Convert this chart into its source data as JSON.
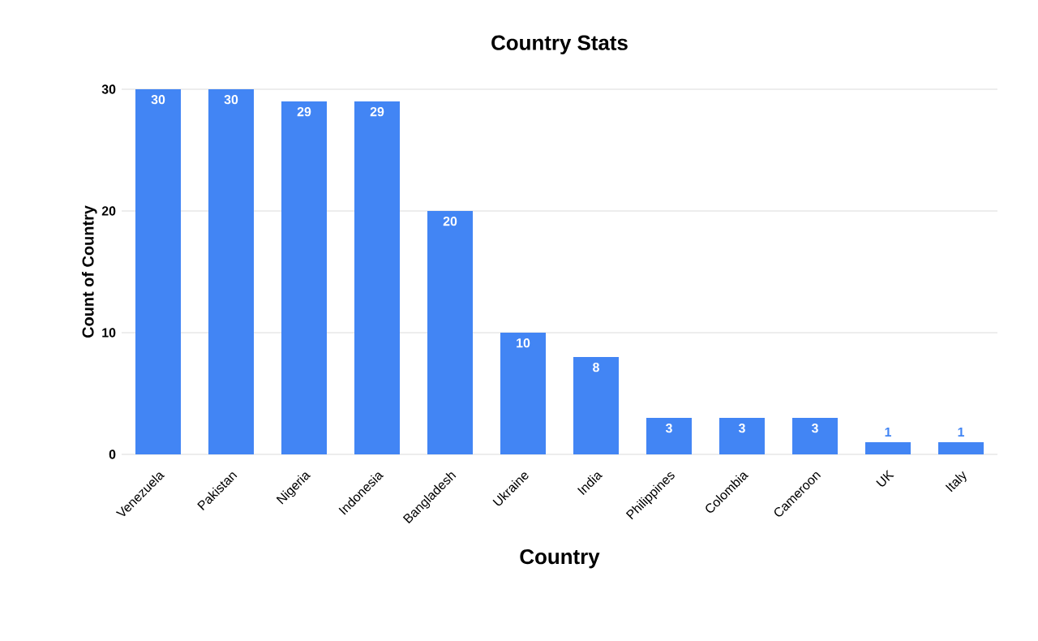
{
  "chart_data": {
    "type": "bar",
    "title": "Country Stats",
    "xlabel": "Country",
    "ylabel": "Count of Country",
    "categories": [
      "Venezuela",
      "Pakistan",
      "Nigeria",
      "Indonesia",
      "Bangladesh",
      "Ukraine",
      "India",
      "Philippines",
      "Colombia",
      "Cameroon",
      "UK",
      "Italy"
    ],
    "values": [
      30,
      30,
      29,
      29,
      20,
      10,
      8,
      3,
      3,
      3,
      1,
      1
    ],
    "color": "#4285f4",
    "ylim": [
      0,
      30
    ],
    "yticks": [
      0,
      10,
      20,
      30
    ],
    "grid": "y",
    "data_labels": true
  }
}
